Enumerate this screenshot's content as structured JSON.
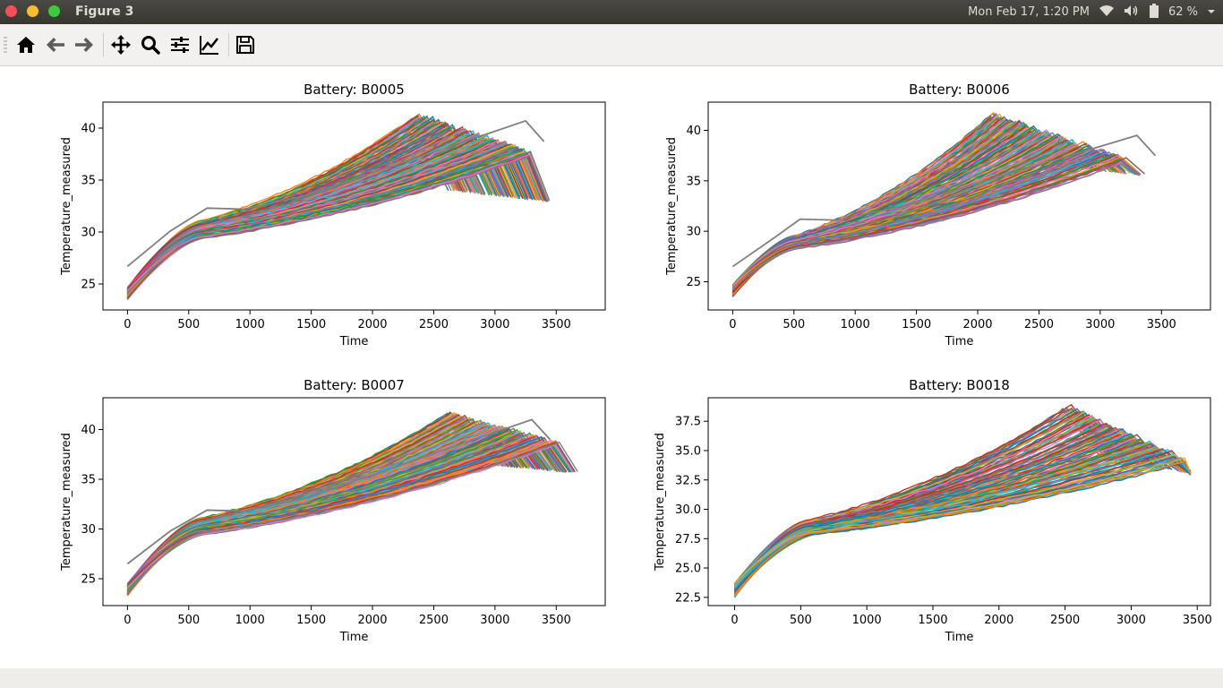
{
  "window": {
    "title": "Figure 3"
  },
  "panel": {
    "clock": "Mon Feb 17,  1:20 PM",
    "battery": "62 %"
  },
  "toolbar": {
    "buttons": [
      "home-icon",
      "back-icon",
      "forward-icon",
      "pan-icon",
      "zoom-icon",
      "configure-subplots-icon",
      "edit-axes-icon",
      "save-icon"
    ]
  },
  "chart_data": [
    {
      "type": "line",
      "title": "Battery: B0005",
      "xlabel": "Time",
      "ylabel": "Temperature_measured",
      "xlim": [
        -200,
        3900
      ],
      "ylim": [
        22.5,
        42.5
      ],
      "xticks": [
        0,
        500,
        1000,
        1500,
        2000,
        2500,
        3000,
        3500
      ],
      "xtick_labels": [
        "0",
        "500",
        "1000",
        "1500",
        "2000",
        "2500",
        "3000",
        "3500"
      ],
      "yticks": [
        25,
        30,
        35,
        40
      ],
      "ytick_labels": [
        "25",
        "30",
        "35",
        "40"
      ],
      "series_count": 168,
      "series_note": "many overlapping charge cycles",
      "start_temp": [
        23.5,
        25.5
      ],
      "plateau_time": 650,
      "plateau_temp": [
        29.0,
        31.0
      ],
      "peak_time": [
        2350,
        3300
      ],
      "peak_temp": [
        41.2,
        37.5
      ],
      "end_time": [
        2700,
        3700
      ],
      "end_temp": 34.0,
      "outlier": {
        "start": 26.7,
        "plateau": 32.3,
        "peak_time": 3250,
        "peak_temp": 40.7
      },
      "grid": false
    },
    {
      "type": "line",
      "title": "Battery: B0006",
      "xlabel": "Time",
      "ylabel": "Temperature_measured",
      "xlim": [
        -200,
        3900
      ],
      "ylim": [
        22.2,
        42.8
      ],
      "xticks": [
        0,
        500,
        1000,
        1500,
        2000,
        2500,
        3000,
        3500
      ],
      "xtick_labels": [
        "0",
        "500",
        "1000",
        "1500",
        "2000",
        "2500",
        "3000",
        "3500"
      ],
      "yticks": [
        25,
        30,
        35,
        40
      ],
      "ytick_labels": [
        "25",
        "30",
        "35",
        "40"
      ],
      "series_count": 168,
      "start_temp": [
        23.5,
        25.5
      ],
      "plateau_time": 550,
      "plateau_temp": [
        28.0,
        29.5
      ],
      "peak_time": [
        2100,
        3200
      ],
      "peak_temp": [
        41.5,
        37.0
      ],
      "end_time": [
        2800,
        3700
      ],
      "end_temp": 38.0,
      "outlier": {
        "start": 26.5,
        "plateau": 31.2,
        "peak_time": 3300,
        "peak_temp": 39.5
      },
      "grid": false
    },
    {
      "type": "line",
      "title": "Battery: B0007",
      "xlabel": "Time",
      "ylabel": "Temperature_measured",
      "xlim": [
        -200,
        3900
      ],
      "ylim": [
        22.3,
        43.2
      ],
      "xticks": [
        0,
        500,
        1000,
        1500,
        2000,
        2500,
        3000,
        3500
      ],
      "xtick_labels": [
        "0",
        "500",
        "1000",
        "1500",
        "2000",
        "2500",
        "3000",
        "3500"
      ],
      "yticks": [
        25,
        30,
        35,
        40
      ],
      "ytick_labels": [
        "25",
        "30",
        "35",
        "40"
      ],
      "series_count": 168,
      "start_temp": [
        23.3,
        25.3
      ],
      "plateau_time": 650,
      "plateau_temp": [
        29.0,
        31.0
      ],
      "peak_time": [
        2600,
        3500
      ],
      "peak_temp": [
        41.5,
        38.5
      ],
      "end_time": [
        2900,
        3700
      ],
      "end_temp": 37.5,
      "outlier": {
        "start": 26.5,
        "plateau": 31.9,
        "peak_time": 3300,
        "peak_temp": 41.0
      },
      "grid": false
    },
    {
      "type": "line",
      "title": "Battery: B0018",
      "xlabel": "Time",
      "ylabel": "Temperature_measured",
      "xlim": [
        -200,
        3600
      ],
      "ylim": [
        21.8,
        39.5
      ],
      "xticks": [
        0,
        500,
        1000,
        1500,
        2000,
        2500,
        3000,
        3500
      ],
      "xtick_labels": [
        "0",
        "500",
        "1000",
        "1500",
        "2000",
        "2500",
        "3000",
        "3500"
      ],
      "yticks": [
        22.5,
        25.0,
        27.5,
        30.0,
        32.5,
        35.0,
        37.5
      ],
      "ytick_labels": [
        "22.5",
        "25.0",
        "27.5",
        "30.0",
        "32.5",
        "35.0",
        "37.5"
      ],
      "series_count": 132,
      "start_temp": [
        22.5,
        24.5
      ],
      "plateau_time": 600,
      "plateau_temp": [
        27.5,
        29.0
      ],
      "peak_time": [
        2500,
        3400
      ],
      "peak_temp": [
        38.7,
        34.0
      ],
      "end_time": [
        2900,
        3450
      ],
      "end_temp": 35.5,
      "grid": false
    }
  ],
  "colors": [
    "#1f77b4",
    "#ff7f0e",
    "#2ca02c",
    "#d62728",
    "#9467bd",
    "#8c564b",
    "#e377c2",
    "#7f7f7f",
    "#bcbd22",
    "#17becf"
  ]
}
